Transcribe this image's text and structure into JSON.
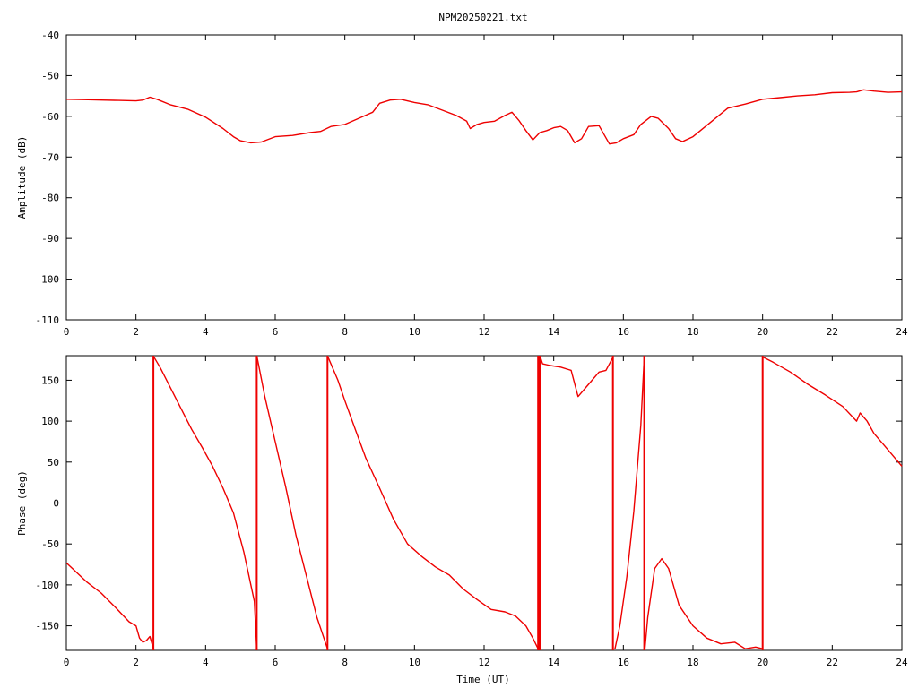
{
  "figure": {
    "title": "NPM20250221.txt",
    "xlabel": "Time (UT)",
    "line_color": "#ee0000"
  },
  "chart_data": [
    {
      "type": "line",
      "title": "NPM20250221.txt",
      "xlabel": "",
      "ylabel": "Amplitude (dB)",
      "xlim": [
        0,
        24
      ],
      "ylim": [
        -110,
        -40
      ],
      "x_ticks": [
        0,
        2,
        4,
        6,
        8,
        10,
        12,
        14,
        16,
        18,
        20,
        22,
        24
      ],
      "x_tick_labels": [
        "0",
        "2",
        "4",
        "6",
        "8",
        "10",
        "12",
        "14",
        "16",
        "18",
        "20",
        "22",
        "24"
      ],
      "y_ticks": [
        -110,
        -100,
        -90,
        -80,
        -70,
        -60,
        -50,
        -40
      ],
      "y_tick_labels": [
        "-110",
        "-100",
        "-90",
        "-80",
        "-70",
        "-60",
        "-50",
        "-40"
      ],
      "grid": false,
      "series": [
        {
          "color": "#ee0000",
          "x": [
            0,
            0.5,
            1.0,
            1.5,
            2.0,
            2.2,
            2.4,
            2.6,
            3.0,
            3.5,
            4.0,
            4.5,
            4.8,
            5.0,
            5.3,
            5.6,
            6.0,
            6.5,
            7.0,
            7.3,
            7.6,
            8.0,
            8.4,
            8.8,
            9.0,
            9.3,
            9.6,
            10.0,
            10.4,
            10.8,
            11.2,
            11.5,
            11.6,
            11.8,
            12.0,
            12.3,
            12.6,
            12.8,
            13.0,
            13.2,
            13.4,
            13.6,
            13.8,
            14.0,
            14.2,
            14.4,
            14.6,
            14.8,
            15.0,
            15.3,
            15.6,
            15.8,
            16.0,
            16.3,
            16.5,
            16.8,
            17.0,
            17.3,
            17.5,
            17.7,
            18.0,
            18.5,
            19.0,
            19.5,
            20.0,
            20.5,
            21.0,
            21.5,
            22.0,
            22.5,
            22.7,
            22.9,
            23.2,
            23.6,
            24.0
          ],
          "y": [
            -55.8,
            -55.9,
            -56.0,
            -56.1,
            -56.2,
            -56.0,
            -55.3,
            -55.8,
            -57.2,
            -58.3,
            -60.2,
            -63.0,
            -65.0,
            -66.0,
            -66.5,
            -66.3,
            -65.0,
            -64.7,
            -64.0,
            -63.7,
            -62.5,
            -62.0,
            -60.5,
            -59.0,
            -56.8,
            -56.0,
            -55.8,
            -56.6,
            -57.2,
            -58.5,
            -59.8,
            -61.2,
            -63.0,
            -62.0,
            -61.5,
            -61.2,
            -59.8,
            -59.0,
            -61.0,
            -63.5,
            -65.8,
            -64.0,
            -63.5,
            -62.8,
            -62.5,
            -63.5,
            -66.5,
            -65.5,
            -62.5,
            -62.3,
            -66.8,
            -66.5,
            -65.5,
            -64.5,
            -62.0,
            -60.0,
            -60.5,
            -63.0,
            -65.5,
            -66.2,
            -65.0,
            -61.5,
            -58.0,
            -57.0,
            -55.8,
            -55.4,
            -55.0,
            -54.7,
            -54.2,
            -54.1,
            -54.0,
            -53.5,
            -53.8,
            -54.1,
            -54.0
          ]
        }
      ]
    },
    {
      "type": "line",
      "title": "",
      "xlabel": "Time (UT)",
      "ylabel": "Phase (deg)",
      "xlim": [
        0,
        24
      ],
      "ylim": [
        -180,
        180
      ],
      "x_ticks": [
        0,
        2,
        4,
        6,
        8,
        10,
        12,
        14,
        16,
        18,
        20,
        22,
        24
      ],
      "x_tick_labels": [
        "0",
        "2",
        "4",
        "6",
        "8",
        "10",
        "12",
        "14",
        "16",
        "18",
        "20",
        "22",
        "24"
      ],
      "y_ticks": [
        -150,
        -100,
        -50,
        0,
        50,
        100,
        150
      ],
      "y_tick_labels": [
        "-150",
        "-100",
        "-50",
        "0",
        "50",
        "100",
        "150"
      ],
      "grid": false,
      "series": [
        {
          "color": "#ee0000",
          "x": [
            0,
            0.3,
            0.6,
            1.0,
            1.4,
            1.8,
            2.0,
            2.1,
            2.2,
            2.3,
            2.4,
            2.5,
            2.52,
            2.7,
            3.0,
            3.3,
            3.6,
            3.9,
            4.2,
            4.5,
            4.8,
            5.1,
            5.4,
            5.47,
            5.48,
            5.7,
            6.0,
            6.3,
            6.6,
            6.9,
            7.2,
            7.5,
            7.52,
            7.8,
            8.0,
            8.3,
            8.6,
            9.0,
            9.4,
            9.8,
            10.2,
            10.6,
            11.0,
            11.4,
            11.8,
            12.2,
            12.6,
            12.9,
            13.2,
            13.4,
            13.55,
            13.57,
            13.6,
            13.62,
            13.68,
            13.9,
            14.2,
            14.5,
            14.7,
            15.0,
            15.3,
            15.5,
            15.7,
            15.74,
            15.76,
            15.9,
            16.1,
            16.3,
            16.5,
            16.6,
            16.62,
            16.7,
            16.9,
            17.1,
            17.3,
            17.6,
            18.0,
            18.4,
            18.8,
            19.2,
            19.5,
            19.8,
            20.0,
            20.02,
            20.3,
            20.8,
            21.3,
            21.8,
            22.3,
            22.7,
            22.8,
            23.0,
            23.2,
            23.6,
            24.0
          ],
          "y": [
            -73,
            -85,
            -97,
            -110,
            -127,
            -145,
            -150,
            -165,
            -170,
            -168,
            -163,
            -178,
            178,
            165,
            140,
            115,
            90,
            68,
            45,
            18,
            -12,
            -60,
            -120,
            -178,
            178,
            130,
            75,
            20,
            -40,
            -90,
            -140,
            -178,
            178,
            150,
            125,
            90,
            55,
            18,
            -20,
            -50,
            -65,
            -78,
            -88,
            -105,
            -118,
            -130,
            -133,
            -138,
            -150,
            -165,
            -178,
            178,
            -178,
            178,
            170,
            168,
            166,
            162,
            130,
            145,
            160,
            162,
            178,
            -178,
            -178,
            -150,
            -90,
            -10,
            95,
            178,
            -178,
            -140,
            -80,
            -68,
            -80,
            -125,
            -150,
            -165,
            -172,
            -170,
            -178,
            -176,
            -178,
            178,
            172,
            160,
            145,
            132,
            118,
            100,
            110,
            100,
            85,
            65,
            45
          ]
        }
      ]
    }
  ]
}
